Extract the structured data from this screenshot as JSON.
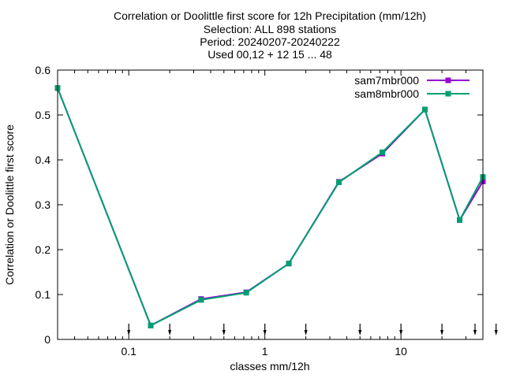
{
  "chart_data": {
    "type": "line",
    "title_lines": [
      "Correlation or Doolittle first score  for 12h Precipitation (mm/12h)",
      "Selection: ALL    898 stations",
      "Period: 20240207-20240222",
      "Used 00,12 + 12 15 ... 48"
    ],
    "xlabel": "classes mm/12h",
    "ylabel": "Correlation or Doolittle first score",
    "x_scale": "log",
    "xlim": [
      0.03,
      40
    ],
    "ylim": [
      0,
      0.6
    ],
    "x_ticks": [
      {
        "value": 0.1,
        "label": "0.1"
      },
      {
        "value": 1,
        "label": "1"
      },
      {
        "value": 10,
        "label": "10"
      }
    ],
    "y_ticks": [
      {
        "value": 0,
        "label": "0"
      },
      {
        "value": 0.1,
        "label": "0.1"
      },
      {
        "value": 0.2,
        "label": "0.2"
      },
      {
        "value": 0.3,
        "label": "0.3"
      },
      {
        "value": 0.4,
        "label": "0.4"
      },
      {
        "value": 0.5,
        "label": "0.5"
      },
      {
        "value": 0.6,
        "label": "0.6"
      }
    ],
    "threshold_markers": [
      0.1,
      0.2,
      0.5,
      1,
      2,
      5,
      10,
      20,
      35,
      50
    ],
    "grid": false,
    "legend_position": "top-right",
    "series": [
      {
        "name": "sam7mbr000",
        "color": "#9400d3",
        "x": [
          0.03,
          0.145,
          0.34,
          0.73,
          1.5,
          3.5,
          7.3,
          15,
          27,
          40
        ],
        "values": [
          0.56,
          0.031,
          0.09,
          0.105,
          0.169,
          0.351,
          0.414,
          0.512,
          0.266,
          0.352
        ]
      },
      {
        "name": "sam8mbr000",
        "color": "#009e73",
        "x": [
          0.03,
          0.145,
          0.34,
          0.73,
          1.5,
          3.5,
          7.3,
          15,
          27,
          40
        ],
        "values": [
          0.56,
          0.031,
          0.088,
          0.104,
          0.169,
          0.35,
          0.417,
          0.512,
          0.266,
          0.362
        ]
      }
    ]
  }
}
